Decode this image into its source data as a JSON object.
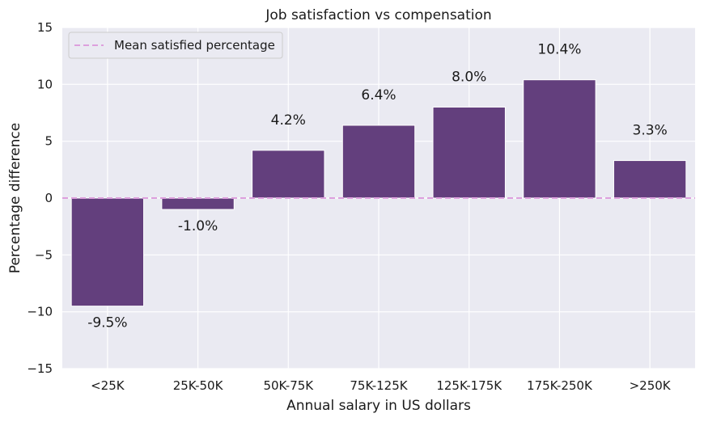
{
  "chart_data": {
    "type": "bar",
    "title": "Job satisfaction vs compensation",
    "xlabel": "Annual salary in US dollars",
    "ylabel": "Percentage difference",
    "categories": [
      "<25K",
      "25K-50K",
      "50K-75K",
      "75K-125K",
      "125K-175K",
      "175K-250K",
      ">250K"
    ],
    "values": [
      -9.5,
      -1.0,
      4.2,
      6.4,
      8.0,
      10.4,
      3.3
    ],
    "value_labels": [
      "-9.5%",
      "-1.0%",
      "4.2%",
      "6.4%",
      "8.0%",
      "10.4%",
      "3.3%"
    ],
    "ylim": [
      -15,
      15
    ],
    "yticks": [
      15,
      10,
      5,
      0,
      -5,
      -10,
      -15
    ],
    "ytick_labels": [
      "15",
      "10",
      "5",
      "0",
      "−5",
      "−10",
      "−15"
    ],
    "grid": true,
    "bar_color": "#633f7d",
    "reference_line": {
      "label": "Mean satisfied percentage",
      "value": 0,
      "color": "#dda0dd",
      "style": "dashed"
    },
    "legend_position": "top-left",
    "background_color": "#eaeaf2"
  }
}
